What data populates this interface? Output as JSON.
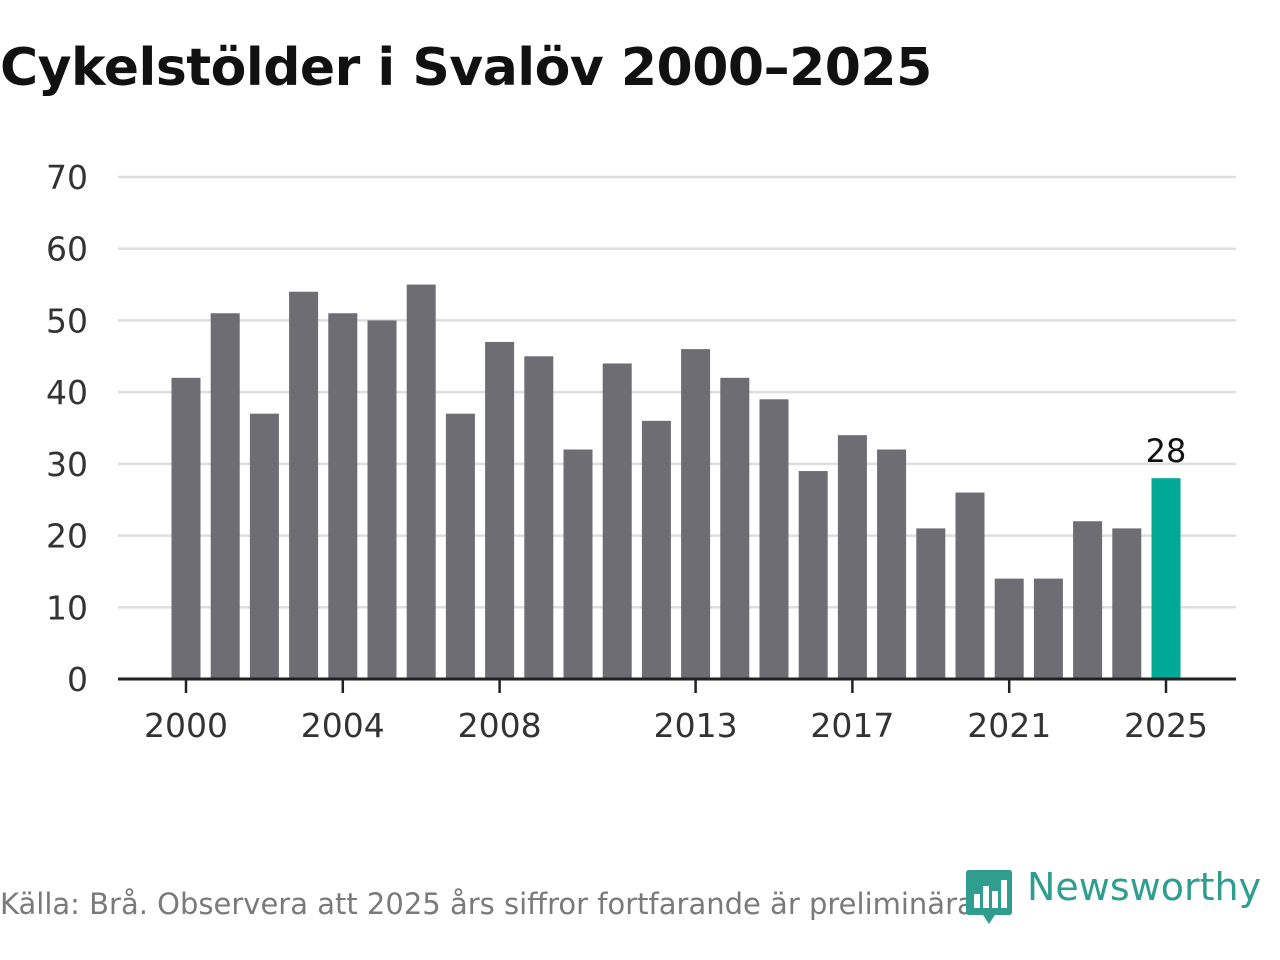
{
  "title": "Cykelstölder i Svalöv 2000–2025",
  "source": "Källa: Brå. Observera att 2025 års siffror fortfarande är preliminära.",
  "logo": {
    "text": "Newsworthy",
    "icon": "newsworthy-chart-icon"
  },
  "colors": {
    "bar": "#6e6d73",
    "highlight": "#00a896",
    "grid": "#dedede",
    "axis": "#222222",
    "tick_text": "#333333",
    "brand": "#2f9e8f"
  },
  "chart_data": {
    "type": "bar",
    "title": "Cykelstölder i Svalöv 2000–2025",
    "xlabel": "",
    "ylabel": "",
    "categories": [
      2000,
      2001,
      2002,
      2003,
      2004,
      2005,
      2006,
      2007,
      2008,
      2009,
      2010,
      2011,
      2012,
      2013,
      2014,
      2015,
      2016,
      2017,
      2018,
      2019,
      2020,
      2021,
      2022,
      2023,
      2024,
      2025
    ],
    "values": [
      42,
      51,
      37,
      54,
      51,
      50,
      55,
      37,
      47,
      45,
      32,
      44,
      36,
      46,
      42,
      39,
      29,
      34,
      32,
      21,
      26,
      14,
      14,
      22,
      21,
      28
    ],
    "highlight_category": 2025,
    "highlight_label": "28",
    "x_ticks": [
      "2000",
      "2004",
      "2008",
      "2013",
      "2017",
      "2021",
      "2025"
    ],
    "y_ticks": [
      "0",
      "10",
      "20",
      "30",
      "40",
      "50",
      "60",
      "70"
    ],
    "ylim": [
      0,
      70
    ],
    "grid": true
  }
}
